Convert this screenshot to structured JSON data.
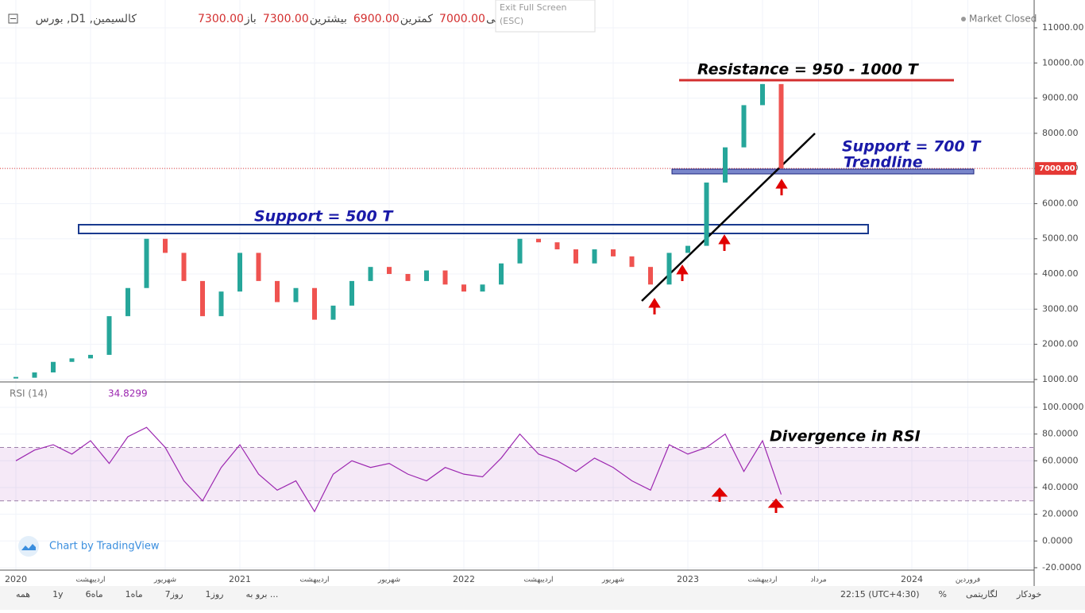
{
  "header": {
    "ohlc": [
      {
        "label": "باز",
        "value": "7300.00"
      },
      {
        "label": "بیشترین",
        "value": "7300.00"
      },
      {
        "label": "کمترین",
        "value": "6900.00"
      },
      {
        "label": "پایانی",
        "value": "7000.00"
      }
    ],
    "exit_full_screen": "Exit Full Screen",
    "esc": "(ESC)",
    "market_status": "Market Closed"
  },
  "chart_data": {
    "type": "line",
    "categories": [
      "2020",
      null,
      null,
      null,
      "اردیبهشت",
      null,
      null,
      null,
      "شهریور",
      null,
      null,
      null,
      "2021",
      null,
      null,
      null,
      "اردیبهشت",
      null,
      null,
      null,
      "شهریور",
      null,
      null,
      null,
      "2022",
      null,
      null,
      null,
      "اردیبهشت",
      null,
      null,
      null,
      "شهریور",
      null,
      null,
      null,
      "2023",
      null,
      null,
      null,
      "اردیبهشت",
      null,
      null,
      "مرداد",
      null,
      null,
      null,
      null,
      "2024",
      null,
      null,
      "فروردین",
      null
    ],
    "series": [
      {
        "name": "بورس ,Dکالسیمین, 1",
        "color": "#26a69a",
        "down_color": "#ef5350",
        "axis": "y",
        "values": [
          1050,
          1200,
          1500,
          1600,
          1700,
          2800,
          3600,
          5000,
          4600,
          3800,
          2800,
          3500,
          4600,
          3800,
          3200,
          3600,
          2700,
          3100,
          3800,
          4200,
          4000,
          3800,
          4100,
          3700,
          3500,
          3700,
          4300,
          5000,
          4900,
          4700,
          4300,
          4700,
          4500,
          4200,
          3700,
          4600,
          4800,
          6600,
          7600,
          8800,
          9400,
          7000,
          null,
          null,
          null,
          null,
          null,
          null,
          null,
          null,
          null,
          null,
          null
        ]
      },
      {
        "name": "RSI (14)",
        "color": "#9c27b0",
        "axis": "y2",
        "values": [
          60,
          68,
          72,
          65,
          75,
          58,
          78,
          85,
          70,
          45,
          30,
          55,
          72,
          50,
          38,
          45,
          22,
          50,
          60,
          55,
          58,
          50,
          45,
          55,
          50,
          48,
          62,
          80,
          65,
          60,
          52,
          62,
          55,
          45,
          38,
          72,
          65,
          70,
          80,
          52,
          75,
          34.8299,
          null,
          null,
          null,
          null,
          null,
          null,
          null,
          null,
          null,
          null,
          null
        ]
      }
    ],
    "ylim": [
      930,
      11790
    ],
    "yticks": [
      {
        "value": 1000,
        "label": "1000.00"
      },
      {
        "value": 2000,
        "label": "2000.00"
      },
      {
        "value": 3000,
        "label": "3000.00"
      },
      {
        "value": 4000,
        "label": "4000.00"
      },
      {
        "value": 5000,
        "label": "5000.00"
      },
      {
        "value": 6000,
        "label": "6000.00"
      },
      {
        "value": 7000,
        "label": "7000.00"
      },
      {
        "value": 8000,
        "label": "8000.00"
      },
      {
        "value": 9000,
        "label": "9000.00"
      },
      {
        "value": 10000,
        "label": "10000.00"
      },
      {
        "value": 11000,
        "label": "11000.00"
      }
    ],
    "y2lim": [
      -21.8,
      117.2
    ],
    "y2ticks": [
      {
        "value": -20,
        "label": "-20.0000"
      },
      {
        "value": 0,
        "label": "0.0000"
      },
      {
        "value": 20,
        "label": "20.0000"
      },
      {
        "value": 40,
        "label": "40.0000"
      },
      {
        "value": 60,
        "label": "60.0000"
      },
      {
        "value": 80,
        "label": "80.0000"
      },
      {
        "value": 100,
        "label": "100.0000"
      }
    ],
    "rsi_bands": [
      30,
      70
    ],
    "last_price": {
      "value": 7000,
      "label": "7000.00"
    },
    "grid": true
  },
  "annotations": [
    "Resistance = 950 - 1000 T",
    "Support = 700 T",
    "Trendline",
    "Support = 500 T",
    "Divergence in RSI"
  ],
  "branding": "Chart by TradingView",
  "bottom_bar": {
    "left": [
      "همه",
      "1y",
      "6ماه",
      "1ماه",
      "7روز",
      "1روز",
      "برو به ..."
    ],
    "right": [
      "22:15 (UTC+4:30)",
      "%",
      "لگاریتمی",
      "خودکار"
    ]
  }
}
